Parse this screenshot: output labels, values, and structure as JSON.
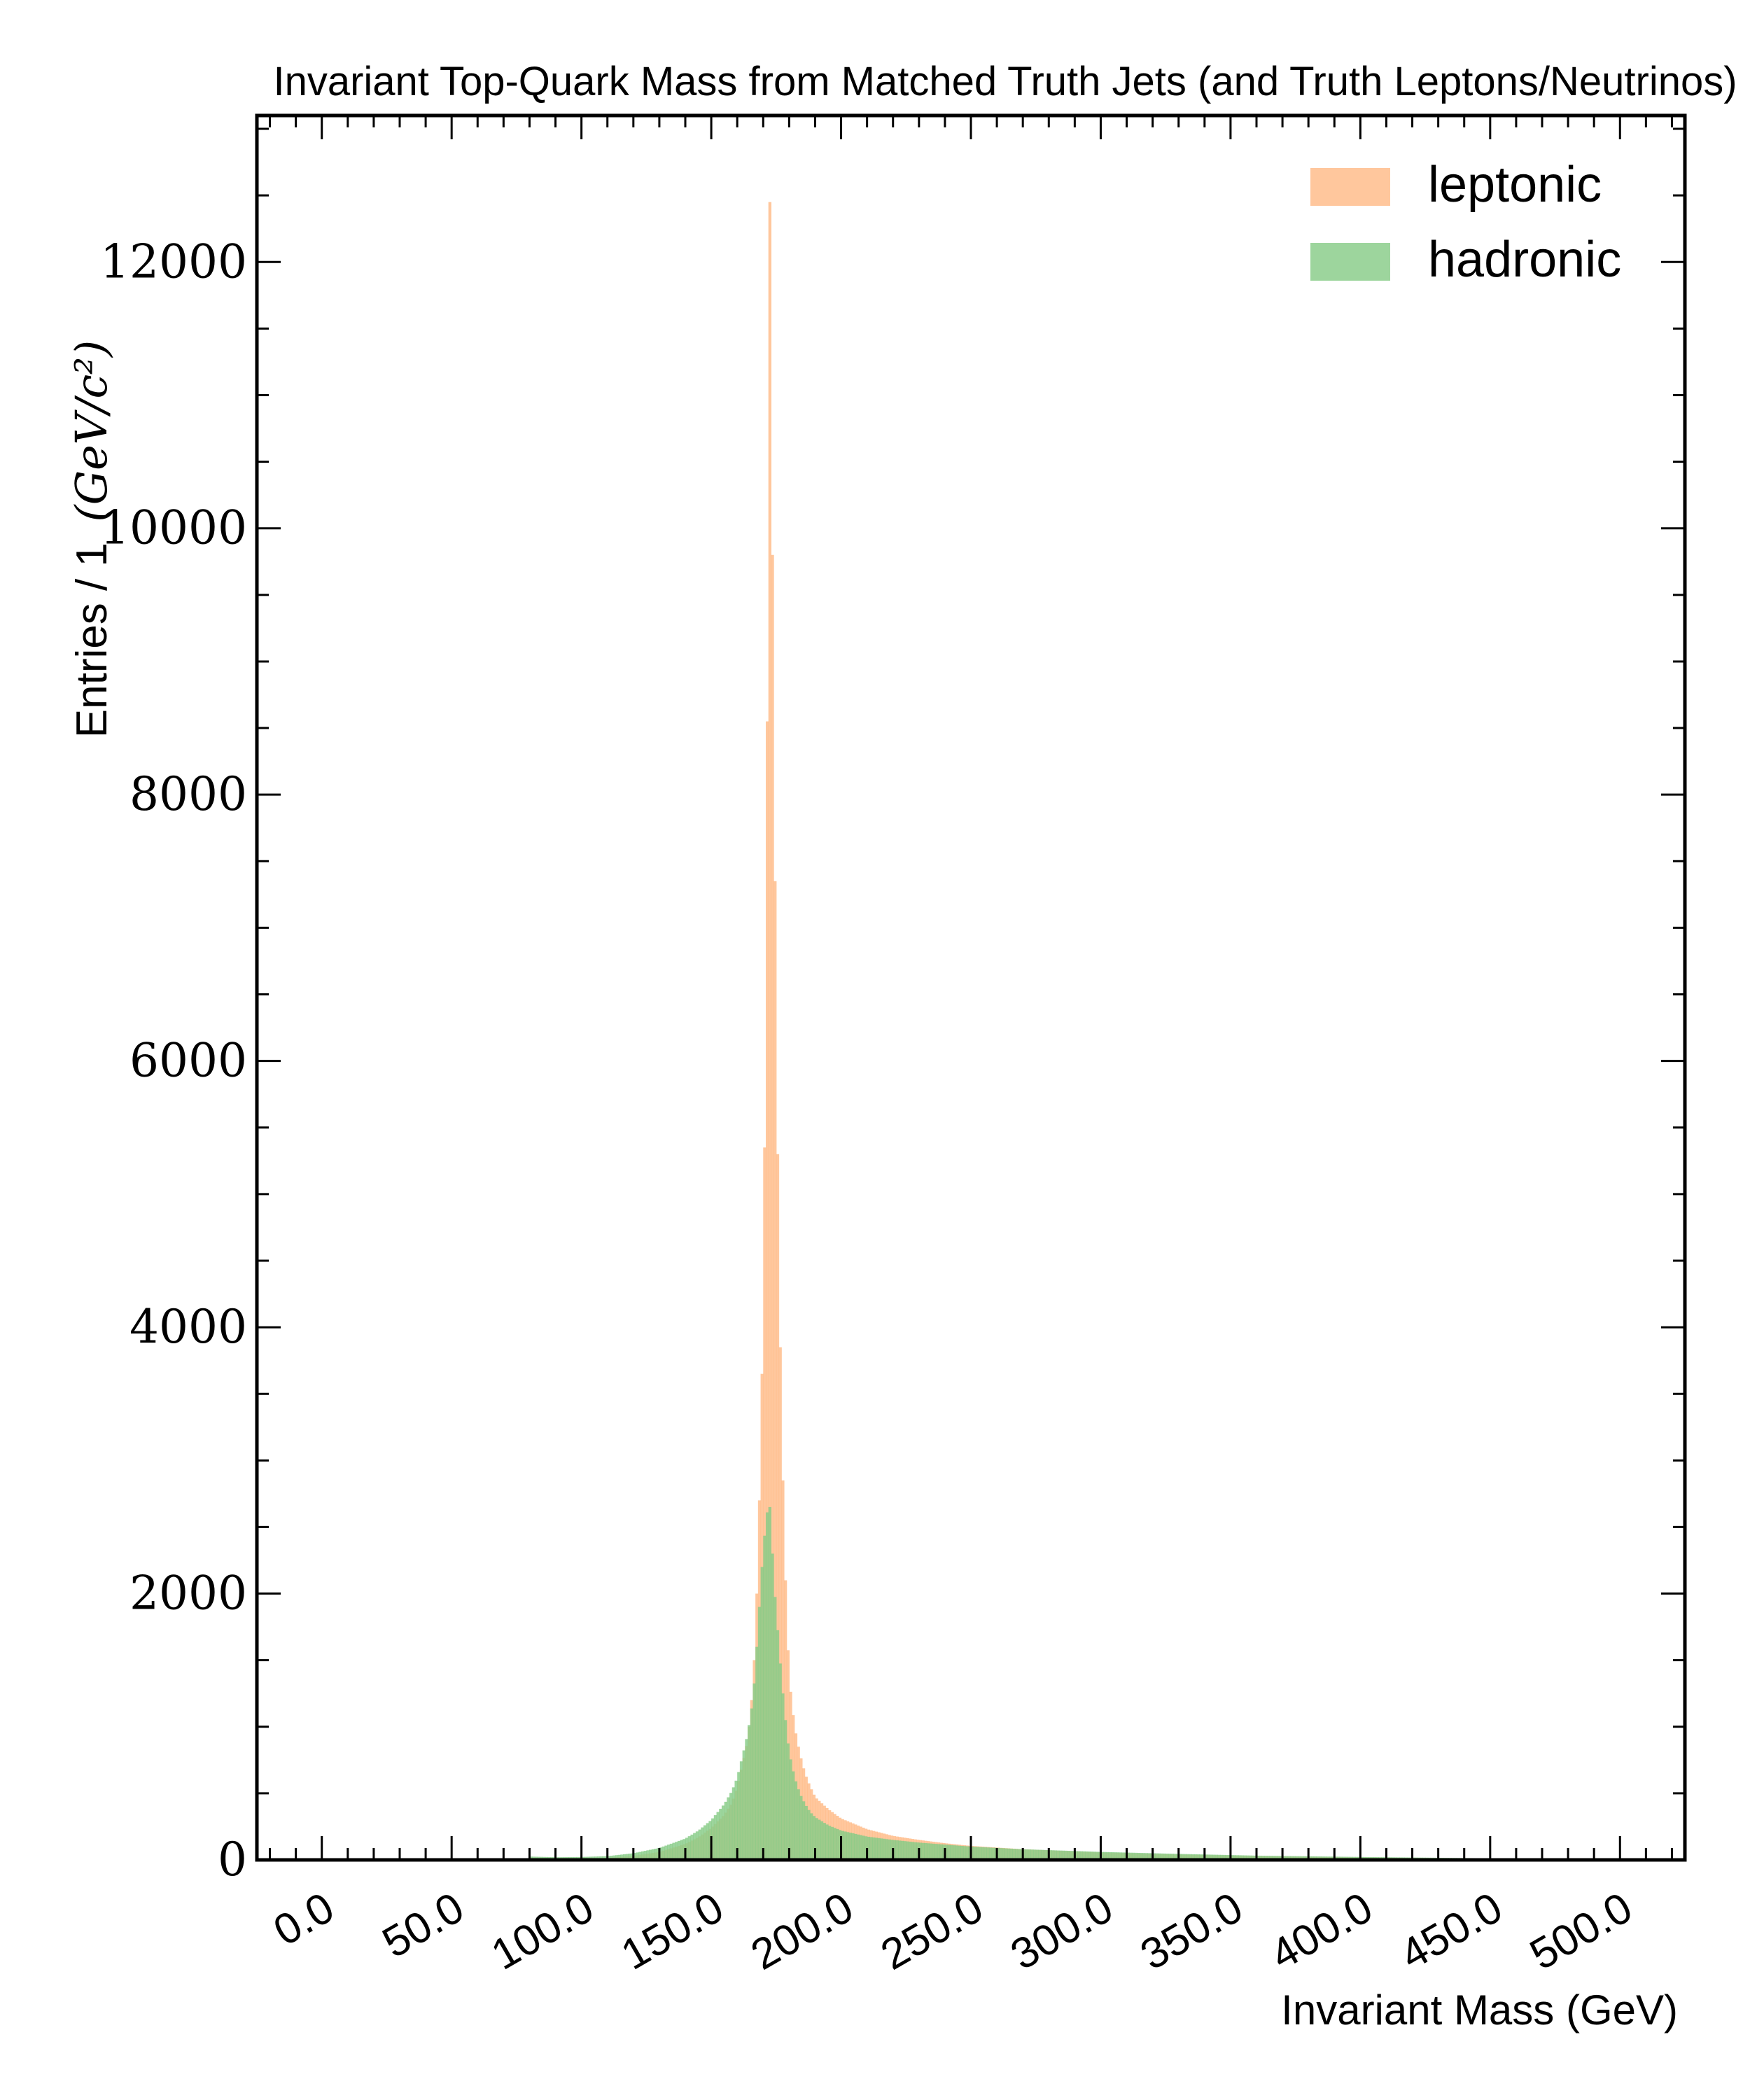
{
  "chart_data": {
    "type": "histogram",
    "title": "Invariant Top-Quark Mass from Matched Truth Jets (and Truth Leptons/Neutrinos)",
    "xlabel": "Invariant Mass (GeV)",
    "ylabel": "Entries / 1",
    "ylabel_unit": "(GeV/c²)",
    "xlim": [
      -25,
      525
    ],
    "ylim": [
      0,
      13100
    ],
    "bin_width": 1,
    "x_ticks": [
      0,
      50,
      100,
      150,
      200,
      250,
      300,
      350,
      400,
      450,
      500
    ],
    "x_tick_labels": [
      "0.0",
      "50.0",
      "100.0",
      "150.0",
      "200.0",
      "250.0",
      "300.0",
      "350.0",
      "400.0",
      "450.0",
      "500.0"
    ],
    "y_ticks": [
      0,
      2000,
      4000,
      6000,
      8000,
      10000,
      12000
    ],
    "y_tick_labels": [
      "0",
      "2000",
      "4000",
      "6000",
      "8000",
      "10000",
      "12000"
    ],
    "legend_position": "top-right",
    "series": [
      {
        "name": "leptonic",
        "color": "#ffbb88",
        "x": [
          80,
          90,
          100,
          110,
          120,
          130,
          140,
          145,
          150,
          155,
          158,
          160,
          162,
          164,
          166,
          167,
          168,
          169,
          170,
          171,
          172,
          172.5,
          173,
          173.5,
          174,
          175,
          176,
          177,
          178,
          179,
          180,
          182,
          184,
          186,
          188,
          190,
          195,
          200,
          210,
          220,
          230,
          240,
          250,
          270,
          300,
          330,
          360,
          400,
          450,
          500
        ],
        "values": [
          0,
          5,
          10,
          15,
          30,
          60,
          120,
          170,
          240,
          340,
          430,
          550,
          720,
          900,
          1300,
          1700,
          2300,
          3100,
          4200,
          6500,
          10600,
          12450,
          11800,
          9800,
          8500,
          6200,
          4400,
          3300,
          2400,
          1800,
          1350,
          1000,
          800,
          650,
          550,
          470,
          380,
          310,
          230,
          180,
          150,
          125,
          105,
          80,
          55,
          40,
          28,
          18,
          10,
          5
        ]
      },
      {
        "name": "hadronic",
        "color": "#88cc88",
        "x": [
          80,
          90,
          100,
          110,
          120,
          130,
          140,
          145,
          150,
          155,
          158,
          160,
          162,
          164,
          166,
          167,
          168,
          169,
          170,
          171,
          172,
          172.5,
          173,
          173.5,
          174,
          175,
          176,
          177,
          178,
          179,
          180,
          182,
          184,
          186,
          188,
          190,
          195,
          200,
          210,
          220,
          230,
          240,
          250,
          270,
          300,
          330,
          360,
          400,
          450,
          500
        ],
        "values": [
          25,
          20,
          22,
          28,
          50,
          90,
          160,
          220,
          300,
          420,
          520,
          620,
          780,
          950,
          1200,
          1450,
          1750,
          2050,
          2350,
          2520,
          2700,
          2650,
          2500,
          2300,
          2100,
          1850,
          1600,
          1350,
          1150,
          950,
          800,
          620,
          500,
          420,
          360,
          320,
          260,
          220,
          175,
          150,
          130,
          115,
          100,
          80,
          60,
          45,
          32,
          22,
          12,
          6
        ]
      }
    ]
  }
}
